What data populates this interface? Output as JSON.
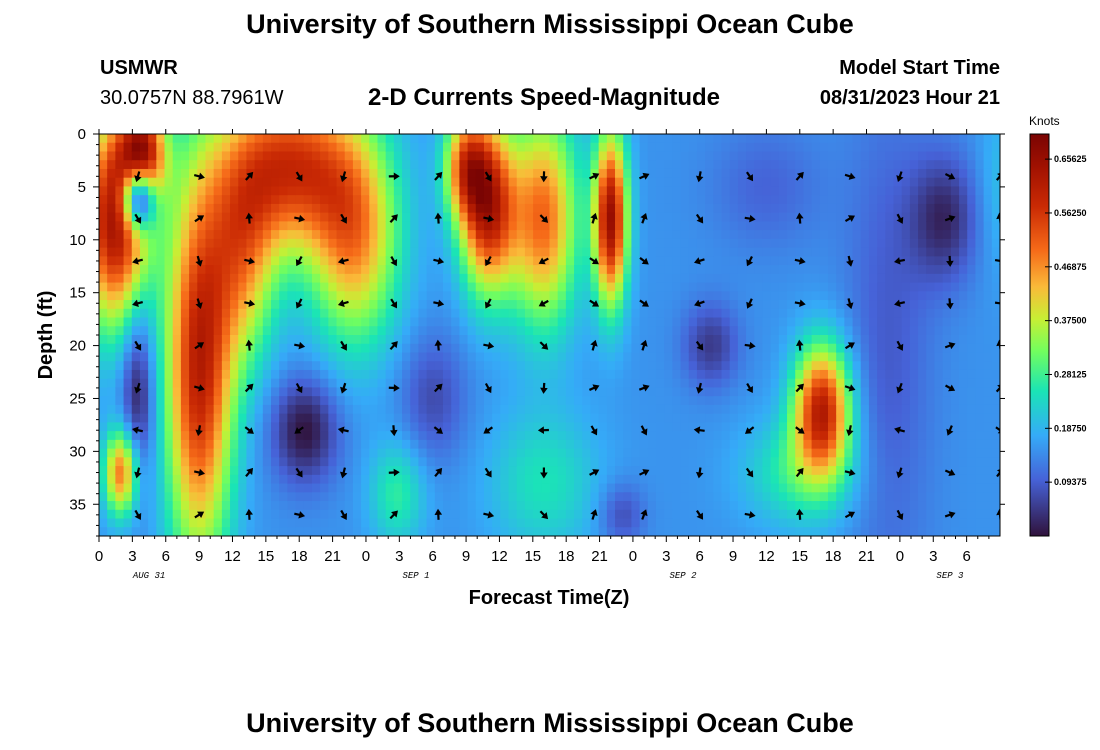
{
  "header": {
    "title": "University of Southern Mississippi Ocean Cube",
    "station": "USMWR",
    "coordinates": "30.0757N  88.7961W",
    "model_start_label": "Model Start Time",
    "model_start_value": "08/31/2023 Hour 21",
    "footer_title": "University of Southern Mississippi Ocean Cube"
  },
  "chart_data": {
    "type": "heatmap",
    "title": "2-D Currents Speed-Magnitude",
    "xlabel": "Forecast Time(Z)",
    "ylabel": "Depth (ft)",
    "x_hours_range": [
      0,
      81
    ],
    "x_ticks": [
      "0",
      "3",
      "6",
      "9",
      "12",
      "15",
      "18",
      "21",
      "0",
      "3",
      "6",
      "9",
      "12",
      "15",
      "18",
      "21",
      "0",
      "3",
      "6",
      "9",
      "12",
      "15",
      "18",
      "21",
      "0",
      "3",
      "6"
    ],
    "date_labels": [
      {
        "label": "AUG 31",
        "hour": 4.5
      },
      {
        "label": "SEP 1",
        "hour": 28.5
      },
      {
        "label": "SEP 2",
        "hour": 52.5
      },
      {
        "label": "SEP 3",
        "hour": 76.5
      }
    ],
    "y_ticks": [
      0,
      5,
      10,
      15,
      20,
      25,
      30,
      35
    ],
    "ylim": [
      0,
      38
    ],
    "colorbar": {
      "label": "Knots",
      "vmin": 0.0,
      "vmax": 0.7,
      "ticks": [
        "0.65625",
        "0.56250",
        "0.46875",
        "0.37500",
        "0.28125",
        "0.18750",
        "0.09375"
      ],
      "tick_values": [
        0.65625,
        0.5625,
        0.46875,
        0.375,
        0.28125,
        0.1875,
        0.09375
      ]
    },
    "background_speed": 0.15,
    "features": [
      {
        "hour": 1.5,
        "depth": 8,
        "sh": 3,
        "sd": 10,
        "amp": 0.5
      },
      {
        "hour": 4,
        "depth": 2,
        "sh": 2,
        "sd": 5,
        "amp": 0.4
      },
      {
        "hour": 3.5,
        "depth": 24,
        "sh": 1.5,
        "sd": 9,
        "amp": -0.15
      },
      {
        "hour": 9,
        "depth": 22,
        "sh": 3,
        "sd": 18,
        "amp": 0.45
      },
      {
        "hour": 13,
        "depth": 12,
        "sh": 3,
        "sd": 10,
        "amp": 0.25
      },
      {
        "hour": 17,
        "depth": 3,
        "sh": 6,
        "sd": 8,
        "amp": 0.4
      },
      {
        "hour": 23,
        "depth": 10,
        "sh": 4,
        "sd": 10,
        "amp": 0.3
      },
      {
        "hour": 18.5,
        "depth": 28,
        "sh": 3,
        "sd": 5,
        "amp": -0.15
      },
      {
        "hour": 3.5,
        "depth": 6,
        "sh": 1.5,
        "sd": 3,
        "amp": -0.5
      },
      {
        "hour": 2,
        "depth": 32,
        "sh": 1.5,
        "sd": 4,
        "amp": 0.35
      },
      {
        "hour": 35,
        "depth": 7,
        "sh": 2.5,
        "sd": 8,
        "amp": 0.45
      },
      {
        "hour": 33,
        "depth": 3,
        "sh": 2,
        "sd": 5,
        "amp": 0.3
      },
      {
        "hour": 26.8,
        "depth": 34,
        "sh": 2.5,
        "sd": 5,
        "amp": 0.12
      },
      {
        "hour": 30,
        "depth": 25,
        "sh": 3,
        "sd": 6,
        "amp": -0.08
      },
      {
        "hour": 40,
        "depth": 8,
        "sh": 3,
        "sd": 10,
        "amp": 0.35
      },
      {
        "hour": 46,
        "depth": 8,
        "sh": 1.5,
        "sd": 8,
        "amp": 0.5
      },
      {
        "hour": 40,
        "depth": 33,
        "sh": 5,
        "sd": 7,
        "amp": 0.1
      },
      {
        "hour": 47,
        "depth": 36,
        "sh": 2,
        "sd": 3,
        "amp": -0.08
      },
      {
        "hour": 55,
        "depth": 20,
        "sh": 2.5,
        "sd": 4,
        "amp": -0.1
      },
      {
        "hour": 65,
        "depth": 26,
        "sh": 2.5,
        "sd": 6,
        "amp": 0.45
      },
      {
        "hour": 63,
        "depth": 32,
        "sh": 5,
        "sd": 5,
        "amp": 0.12
      },
      {
        "hour": 60,
        "depth": 5,
        "sh": 5,
        "sd": 6,
        "amp": -0.05
      },
      {
        "hour": 71,
        "depth": 20,
        "sh": 4,
        "sd": 25,
        "amp": -0.06
      },
      {
        "hour": 76,
        "depth": 8,
        "sh": 3,
        "sd": 6,
        "amp": -0.12
      },
      {
        "hour": 81,
        "depth": 5,
        "sh": 2,
        "sd": 8,
        "amp": 0.05
      }
    ],
    "arrow_grid": {
      "hours": [
        3.5,
        9,
        13.5,
        18,
        22,
        26.5,
        30.5,
        35,
        40,
        44.5,
        49,
        54,
        58.5,
        63,
        67.5,
        72,
        76.5,
        81
      ],
      "depths": [
        4,
        8,
        12,
        16,
        20,
        24,
        28,
        32,
        36
      ]
    }
  }
}
